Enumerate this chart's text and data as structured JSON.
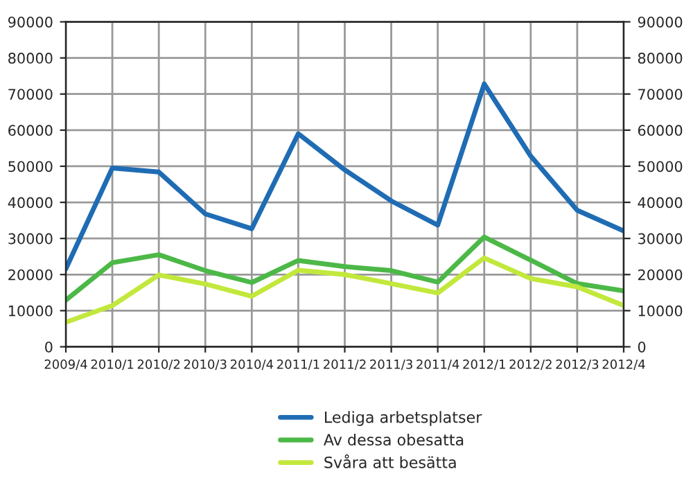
{
  "chart_data": {
    "type": "line",
    "categories": [
      "2009/4",
      "2010/1",
      "2010/2",
      "2010/3",
      "2010/4",
      "2011/1",
      "2011/2",
      "2011/3",
      "2011/4",
      "2012/1",
      "2012/2",
      "2012/3",
      "2012/4"
    ],
    "series": [
      {
        "name": "Lediga arbetsplatser",
        "color": "#1f6cb4",
        "values": [
          21600,
          49500,
          48400,
          36800,
          32700,
          59000,
          49000,
          40400,
          33700,
          72800,
          52800,
          37800,
          32100
        ]
      },
      {
        "name": "Av dessa obesatta",
        "color": "#4cb847",
        "values": [
          12900,
          23300,
          25500,
          21100,
          17800,
          23900,
          22200,
          21100,
          17900,
          30400,
          24000,
          17500,
          15500
        ]
      },
      {
        "name": "Svåra att besätta",
        "color": "#c2e83c",
        "values": [
          6800,
          11400,
          19900,
          17400,
          14000,
          21200,
          20000,
          17500,
          14900,
          24600,
          18900,
          16600,
          11400
        ]
      }
    ],
    "ylim": [
      0,
      90000
    ],
    "yticks": [
      0,
      10000,
      20000,
      30000,
      40000,
      50000,
      60000,
      70000,
      80000,
      90000
    ],
    "y2lim": [
      0,
      90000
    ],
    "y2ticks": [
      0,
      10000,
      20000,
      30000,
      40000,
      50000,
      60000,
      70000,
      80000,
      90000
    ],
    "grid": true,
    "legend": "bottom"
  }
}
